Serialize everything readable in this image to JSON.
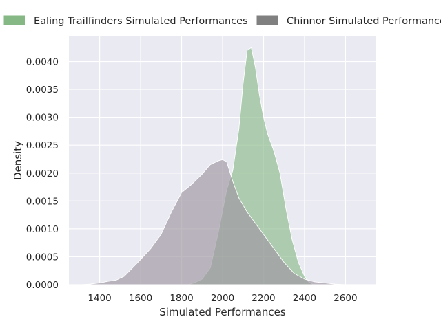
{
  "chart_data": {
    "type": "area",
    "title": "",
    "xlabel": "Simulated Performances",
    "ylabel": "Density",
    "xlim": [
      1250,
      2750
    ],
    "ylim": [
      0,
      0.00445
    ],
    "grid": true,
    "legend": "top",
    "x_ticks": [
      1400,
      1600,
      1800,
      2000,
      2200,
      2400,
      2600
    ],
    "x_tick_labels": [
      "1400",
      "1600",
      "1800",
      "2000",
      "2200",
      "2400",
      "2600"
    ],
    "y_ticks": [
      0,
      0.0005,
      0.001,
      0.0015,
      0.002,
      0.0025,
      0.003,
      0.0035,
      0.004
    ],
    "y_tick_labels": [
      "0.0000",
      "0.0005",
      "0.0010",
      "0.0015",
      "0.0020",
      "0.0025",
      "0.0030",
      "0.0035",
      "0.0040"
    ],
    "series": [
      {
        "name": "Ealing Trailfinders Simulated Performances",
        "color": "#8fbc8f",
        "x": [
          1830,
          1860,
          1900,
          1940,
          1980,
          2020,
          2050,
          2080,
          2100,
          2120,
          2140,
          2160,
          2180,
          2200,
          2220,
          2250,
          2280,
          2310,
          2340,
          2370,
          2400,
          2420,
          2440,
          2460
        ],
        "y": [
          0,
          3e-05,
          0.0001,
          0.0003,
          0.00095,
          0.0017,
          0.00205,
          0.0028,
          0.0036,
          0.0042,
          0.00425,
          0.0039,
          0.0034,
          0.003,
          0.0027,
          0.0024,
          0.002,
          0.00135,
          0.0008,
          0.0004,
          0.00015,
          5e-05,
          1e-05,
          0
        ]
      },
      {
        "name": "Chinnor Simulated Performances",
        "color": "#a09aa4",
        "x": [
          1310,
          1350,
          1400,
          1440,
          1480,
          1520,
          1560,
          1600,
          1650,
          1700,
          1750,
          1800,
          1850,
          1900,
          1940,
          1980,
          2000,
          2020,
          2050,
          2080,
          2120,
          2160,
          2200,
          2250,
          2300,
          2350,
          2400,
          2450,
          2500,
          2550,
          2600,
          2650,
          2700,
          2740
        ],
        "y": [
          0,
          1e-05,
          3e-05,
          6e-05,
          8e-05,
          0.00015,
          0.0003,
          0.00045,
          0.00065,
          0.0009,
          0.0013,
          0.00165,
          0.0018,
          0.00198,
          0.00215,
          0.00222,
          0.00224,
          0.0022,
          0.00185,
          0.00155,
          0.0013,
          0.0011,
          0.0009,
          0.00065,
          0.0004,
          0.0002,
          0.0001,
          5e-05,
          3e-05,
          1e-05,
          0,
          0,
          0,
          0
        ]
      }
    ]
  }
}
